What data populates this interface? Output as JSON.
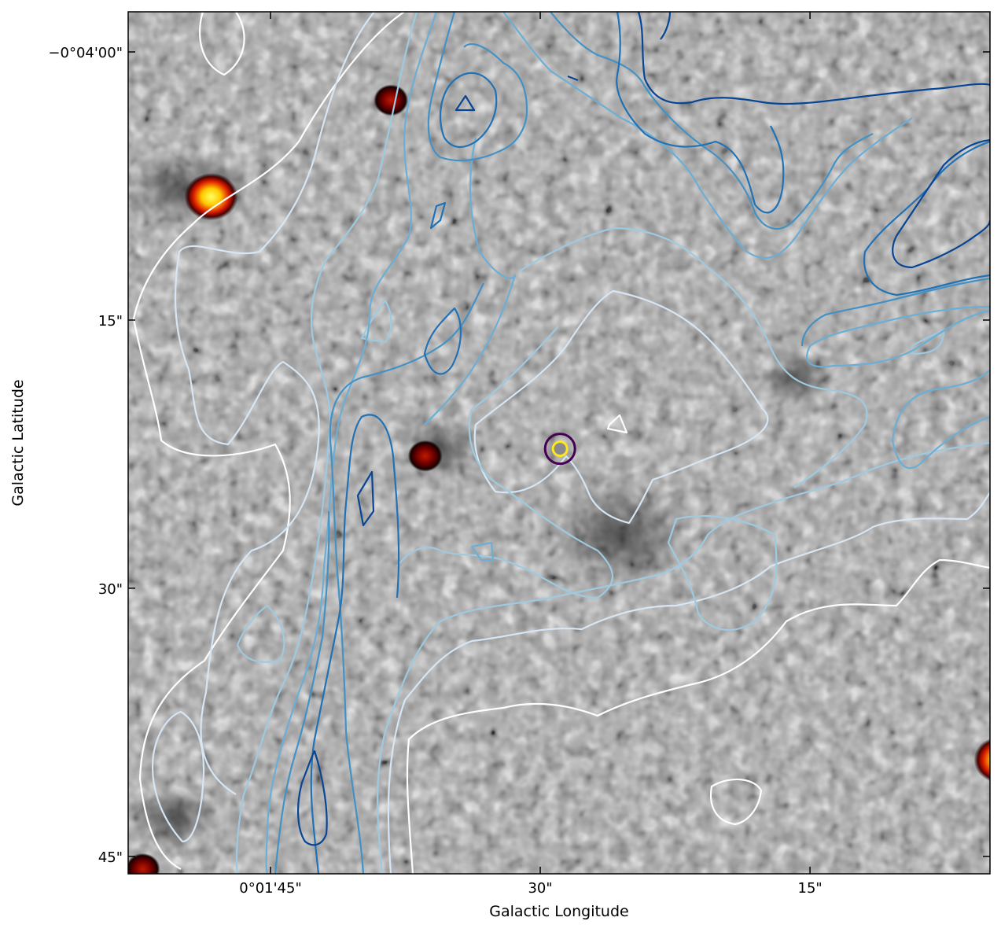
{
  "chart_data": {
    "type": "image-with-contours",
    "title": "",
    "xlabel": "Galactic Longitude",
    "ylabel": "Galactic Latitude",
    "x_ticks": [
      {
        "label": "0°01'45\"",
        "arcsec_offset": 0
      },
      {
        "label": "30\"",
        "arcsec_offset": -15
      },
      {
        "label": "15\"",
        "arcsec_offset": -30
      }
    ],
    "y_ticks": [
      {
        "label": "−0°04'00\"",
        "arcsec_offset": 0
      },
      {
        "label": "15\"",
        "arcsec_offset": -15
      },
      {
        "label": "30\"",
        "arcsec_offset": -30
      },
      {
        "label": "45\"",
        "arcsec_offset": -45
      }
    ],
    "background": {
      "colormap": "gray with hot (red-yellow) highlights for bright sources",
      "sources": [
        {
          "name": "source-1",
          "x_arcsec": 3.3,
          "y_arcsec": -8.1,
          "color": "#ffd21a"
        },
        {
          "name": "source-2",
          "x_arcsec": -6.7,
          "y_arcsec": -2.7,
          "color": "#8b0000"
        },
        {
          "name": "source-3",
          "x_arcsec": -8.6,
          "y_arcsec": -22.6,
          "color": "#9a0a00"
        },
        {
          "name": "source-4",
          "x_arcsec": 7.1,
          "y_arcsec": -45.7,
          "color": "#b01500"
        },
        {
          "name": "source-5",
          "x_arcsec": -40.6,
          "y_arcsec": -39.6,
          "color": "#ffcc00"
        }
      ]
    },
    "contours": {
      "colormap": "Blues",
      "levels": [
        {
          "name": "level-1",
          "color": "#ffffff"
        },
        {
          "name": "level-2",
          "color": "#d6e6f4"
        },
        {
          "name": "level-3",
          "color": "#9ecae1"
        },
        {
          "name": "level-4",
          "color": "#6baed6"
        },
        {
          "name": "level-5",
          "color": "#4292c6"
        },
        {
          "name": "level-6",
          "color": "#2171b5"
        },
        {
          "name": "level-7",
          "color": "#084594"
        }
      ]
    },
    "marker": {
      "x_arcsec": -16.1,
      "y_arcsec": -22.2,
      "outer_color": "#440154",
      "inner_color": "#fde725"
    },
    "grid": false
  }
}
